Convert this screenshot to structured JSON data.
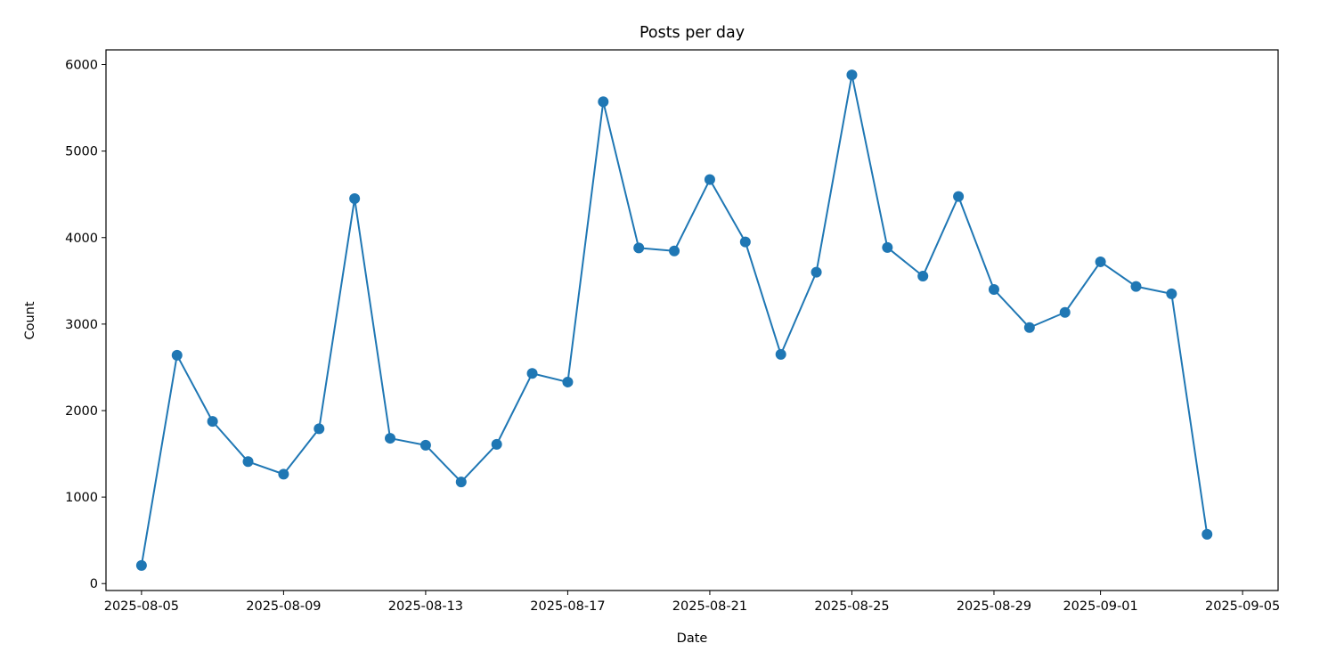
{
  "chart_data": {
    "type": "line",
    "title": "Posts per day",
    "xlabel": "Date",
    "ylabel": "Count",
    "x": [
      "2025-08-05",
      "2025-08-06",
      "2025-08-07",
      "2025-08-08",
      "2025-08-09",
      "2025-08-10",
      "2025-08-11",
      "2025-08-12",
      "2025-08-13",
      "2025-08-14",
      "2025-08-15",
      "2025-08-16",
      "2025-08-17",
      "2025-08-18",
      "2025-08-19",
      "2025-08-20",
      "2025-08-21",
      "2025-08-22",
      "2025-08-23",
      "2025-08-24",
      "2025-08-25",
      "2025-08-26",
      "2025-08-27",
      "2025-08-28",
      "2025-08-29",
      "2025-08-30",
      "2025-08-31",
      "2025-09-01",
      "2025-09-02",
      "2025-09-03",
      "2025-09-04"
    ],
    "series": [
      {
        "values": [
          210,
          2640,
          1875,
          1410,
          1265,
          1790,
          4450,
          1680,
          1600,
          1175,
          1610,
          2430,
          2330,
          5570,
          3880,
          3845,
          4670,
          3950,
          2650,
          3600,
          5880,
          3885,
          3555,
          4475,
          3400,
          2960,
          3135,
          3720,
          3435,
          3350,
          570
        ],
        "color": "#1f77b4",
        "marker": "circle"
      }
    ],
    "xlim": [
      "2025-08-04",
      "2025-09-06"
    ],
    "ylim": [
      -80,
      6170
    ],
    "xticks": [
      "2025-08-05",
      "2025-08-09",
      "2025-08-13",
      "2025-08-17",
      "2025-08-21",
      "2025-08-25",
      "2025-08-29",
      "2025-09-01",
      "2025-09-05"
    ],
    "yticks": [
      0,
      1000,
      2000,
      3000,
      4000,
      5000,
      6000
    ],
    "grid": false,
    "legend": "none"
  }
}
